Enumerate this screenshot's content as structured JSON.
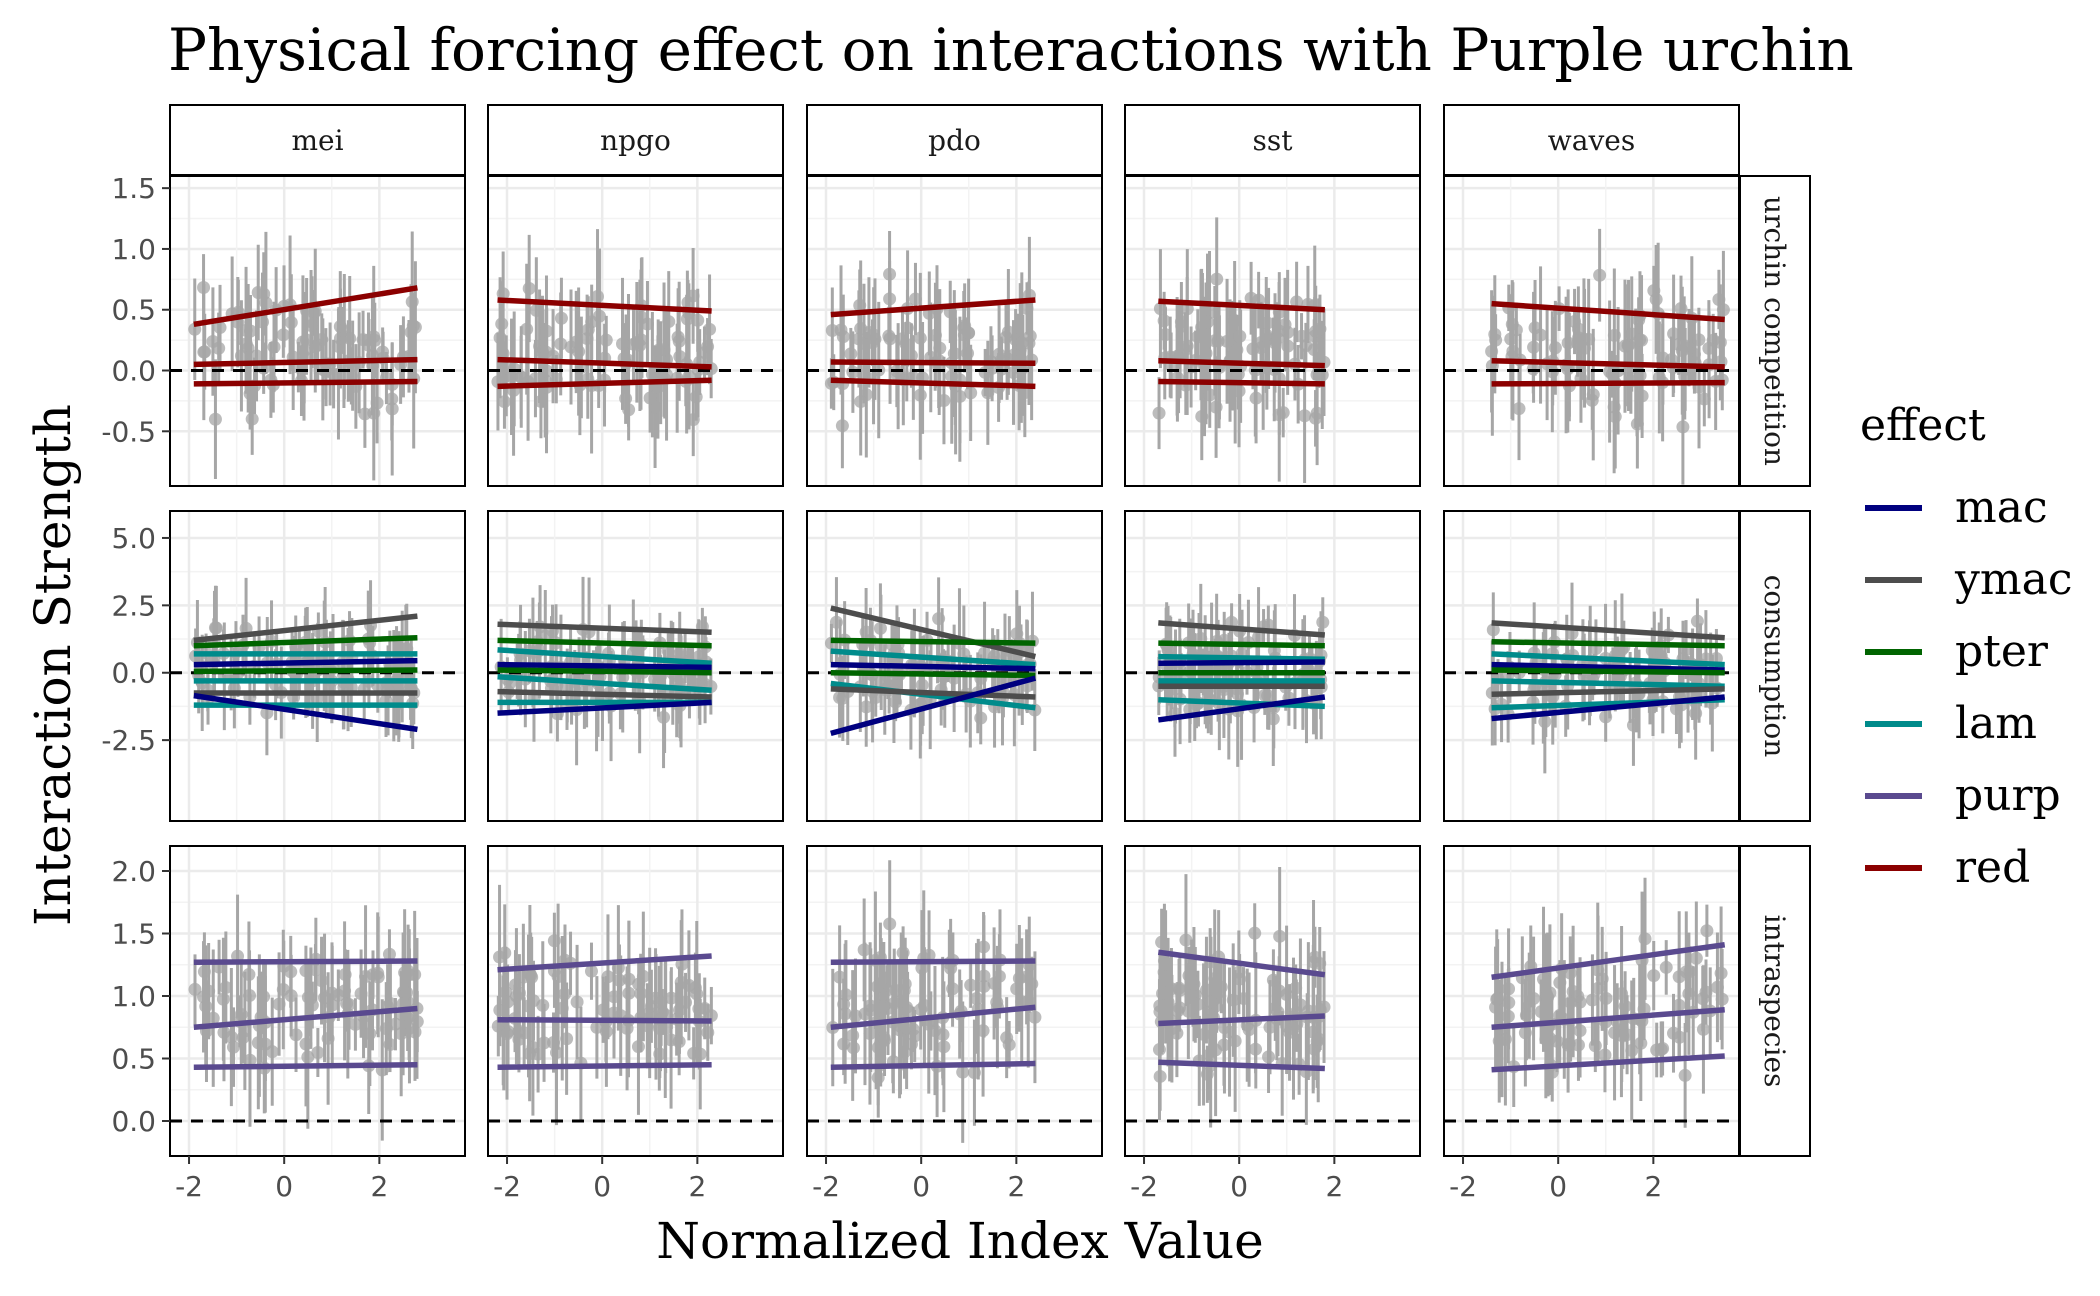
{
  "chart_data": {
    "type": "line",
    "title": "Physical forcing effect on interactions with Purple urchin",
    "xlabel": "Normalized Index Value",
    "ylabel": "Interaction Strength",
    "columns": [
      "mei",
      "npgo",
      "pdo",
      "sst",
      "waves"
    ],
    "rows": [
      "urchin competition",
      "consumption",
      "intraspecies"
    ],
    "xlim": [
      -2.4,
      3.8
    ],
    "x_ticks": [
      -2,
      0,
      2
    ],
    "x_tick_labels": [
      "-2",
      "0",
      "2"
    ],
    "x_range_by_column": {
      "mei": [
        -1.9,
        2.8
      ],
      "npgo": [
        -2.2,
        2.3
      ],
      "pdo": [
        -1.9,
        2.4
      ],
      "sst": [
        -1.7,
        1.8
      ],
      "waves": [
        -1.4,
        3.5
      ]
    },
    "row_axes": {
      "urchin competition": {
        "ylim": [
          -0.95,
          1.6
        ],
        "ticks": [
          -0.5,
          0.0,
          0.5,
          1.0,
          1.5
        ],
        "tick_labels": [
          "-0.5",
          "0.0",
          "0.5",
          "1.0",
          "1.5"
        ]
      },
      "consumption": {
        "ylim": [
          -5.5,
          6.0
        ],
        "ticks": [
          -2.5,
          0.0,
          2.5,
          5.0
        ],
        "tick_labels": [
          "-2.5",
          "0.0",
          "2.5",
          "5.0"
        ]
      },
      "intraspecies": {
        "ylim": [
          -0.28,
          2.2
        ],
        "ticks": [
          0.0,
          0.5,
          1.0,
          1.5,
          2.0
        ],
        "tick_labels": [
          "0.0",
          "0.5",
          "1.0",
          "1.5",
          "2.0"
        ]
      }
    },
    "reference_line_y": 0,
    "legend": {
      "title": "effect",
      "position": "right",
      "items": [
        {
          "name": "mac",
          "color": "#00007f"
        },
        {
          "name": "ymac",
          "color": "#4d4d4d"
        },
        {
          "name": "pter",
          "color": "#006400"
        },
        {
          "name": "lam",
          "color": "#008b8b"
        },
        {
          "name": "purp",
          "color": "#5a4a8f"
        },
        {
          "name": "red",
          "color": "#8b0000"
        }
      ]
    },
    "point_color": "#a6a6a6",
    "grid": true,
    "trend_lines": {
      "urchin competition": {
        "mei": [
          {
            "effect": "red",
            "y": [
              0.38,
              0.68
            ]
          },
          {
            "effect": "red",
            "y": [
              0.05,
              0.09
            ]
          },
          {
            "effect": "red",
            "y": [
              -0.11,
              -0.09
            ]
          }
        ],
        "npgo": [
          {
            "effect": "red",
            "y": [
              0.58,
              0.49
            ]
          },
          {
            "effect": "red",
            "y": [
              0.09,
              0.03
            ]
          },
          {
            "effect": "red",
            "y": [
              -0.13,
              -0.08
            ]
          }
        ],
        "pdo": [
          {
            "effect": "red",
            "y": [
              0.46,
              0.58
            ]
          },
          {
            "effect": "red",
            "y": [
              0.07,
              0.06
            ]
          },
          {
            "effect": "red",
            "y": [
              -0.08,
              -0.13
            ]
          }
        ],
        "sst": [
          {
            "effect": "red",
            "y": [
              0.57,
              0.5
            ]
          },
          {
            "effect": "red",
            "y": [
              0.08,
              0.04
            ]
          },
          {
            "effect": "red",
            "y": [
              -0.09,
              -0.11
            ]
          }
        ],
        "waves": [
          {
            "effect": "red",
            "y": [
              0.55,
              0.42
            ]
          },
          {
            "effect": "red",
            "y": [
              0.08,
              0.03
            ]
          },
          {
            "effect": "red",
            "y": [
              -0.11,
              -0.1
            ]
          }
        ]
      },
      "consumption": {
        "mei": [
          {
            "effect": "ymac",
            "y": [
              1.2,
              2.1
            ]
          },
          {
            "effect": "pter",
            "y": [
              1.0,
              1.3
            ]
          },
          {
            "effect": "lam",
            "y": [
              0.7,
              0.7
            ]
          },
          {
            "effect": "mac",
            "y": [
              0.3,
              0.45
            ]
          },
          {
            "effect": "pter",
            "y": [
              0.05,
              0.1
            ]
          },
          {
            "effect": "lam",
            "y": [
              -0.3,
              -0.3
            ]
          },
          {
            "effect": "ymac",
            "y": [
              -0.75,
              -0.75
            ]
          },
          {
            "effect": "lam",
            "y": [
              -1.2,
              -1.2
            ]
          },
          {
            "effect": "mac",
            "y": [
              -0.85,
              -2.1
            ]
          }
        ],
        "npgo": [
          {
            "effect": "ymac",
            "y": [
              1.8,
              1.5
            ]
          },
          {
            "effect": "pter",
            "y": [
              1.2,
              1.0
            ]
          },
          {
            "effect": "lam",
            "y": [
              0.85,
              0.35
            ]
          },
          {
            "effect": "mac",
            "y": [
              0.3,
              0.2
            ]
          },
          {
            "effect": "pter",
            "y": [
              0.1,
              0.0
            ]
          },
          {
            "effect": "lam",
            "y": [
              -0.15,
              -0.65
            ]
          },
          {
            "effect": "ymac",
            "y": [
              -0.7,
              -0.9
            ]
          },
          {
            "effect": "lam",
            "y": [
              -1.1,
              -1.1
            ]
          },
          {
            "effect": "mac",
            "y": [
              -1.5,
              -1.1
            ]
          }
        ],
        "pdo": [
          {
            "effect": "ymac",
            "y": [
              2.4,
              0.6
            ]
          },
          {
            "effect": "pter",
            "y": [
              1.2,
              1.1
            ]
          },
          {
            "effect": "lam",
            "y": [
              0.8,
              0.3
            ]
          },
          {
            "effect": "mac",
            "y": [
              0.3,
              0.15
            ]
          },
          {
            "effect": "pter",
            "y": [
              0.0,
              -0.1
            ]
          },
          {
            "effect": "lam",
            "y": [
              -0.4,
              -1.3
            ]
          },
          {
            "effect": "ymac",
            "y": [
              -0.6,
              -0.9
            ]
          },
          {
            "effect": "mac",
            "y": [
              -2.25,
              -0.2
            ]
          }
        ],
        "sst": [
          {
            "effect": "ymac",
            "y": [
              1.85,
              1.4
            ]
          },
          {
            "effect": "pter",
            "y": [
              1.1,
              1.0
            ]
          },
          {
            "effect": "lam",
            "y": [
              0.6,
              0.5
            ]
          },
          {
            "effect": "mac",
            "y": [
              0.35,
              0.4
            ]
          },
          {
            "effect": "pter",
            "y": [
              0.0,
              0.0
            ]
          },
          {
            "effect": "lam",
            "y": [
              -0.3,
              -0.3
            ]
          },
          {
            "effect": "ymac",
            "y": [
              -0.5,
              -0.5
            ]
          },
          {
            "effect": "lam",
            "y": [
              -1.0,
              -1.25
            ]
          },
          {
            "effect": "mac",
            "y": [
              -1.75,
              -0.9
            ]
          }
        ],
        "waves": [
          {
            "effect": "ymac",
            "y": [
              1.85,
              1.3
            ]
          },
          {
            "effect": "pter",
            "y": [
              1.15,
              1.0
            ]
          },
          {
            "effect": "lam",
            "y": [
              0.7,
              0.3
            ]
          },
          {
            "effect": "mac",
            "y": [
              0.3,
              0.1
            ]
          },
          {
            "effect": "pter",
            "y": [
              0.1,
              0.0
            ]
          },
          {
            "effect": "lam",
            "y": [
              -0.3,
              -0.5
            ]
          },
          {
            "effect": "ymac",
            "y": [
              -0.8,
              -0.6
            ]
          },
          {
            "effect": "lam",
            "y": [
              -1.3,
              -1.0
            ]
          },
          {
            "effect": "mac",
            "y": [
              -1.7,
              -0.9
            ]
          }
        ]
      },
      "intraspecies": {
        "mei": [
          {
            "effect": "purp",
            "y": [
              1.27,
              1.28
            ]
          },
          {
            "effect": "purp",
            "y": [
              0.75,
              0.9
            ]
          },
          {
            "effect": "purp",
            "y": [
              0.43,
              0.45
            ]
          }
        ],
        "npgo": [
          {
            "effect": "purp",
            "y": [
              1.21,
              1.32
            ]
          },
          {
            "effect": "purp",
            "y": [
              0.81,
              0.8
            ]
          },
          {
            "effect": "purp",
            "y": [
              0.43,
              0.45
            ]
          }
        ],
        "pdo": [
          {
            "effect": "purp",
            "y": [
              1.27,
              1.28
            ]
          },
          {
            "effect": "purp",
            "y": [
              0.75,
              0.91
            ]
          },
          {
            "effect": "purp",
            "y": [
              0.43,
              0.46
            ]
          }
        ],
        "sst": [
          {
            "effect": "purp",
            "y": [
              1.35,
              1.17
            ]
          },
          {
            "effect": "purp",
            "y": [
              0.78,
              0.84
            ]
          },
          {
            "effect": "purp",
            "y": [
              0.47,
              0.42
            ]
          }
        ],
        "waves": [
          {
            "effect": "purp",
            "y": [
              1.15,
              1.41
            ]
          },
          {
            "effect": "purp",
            "y": [
              0.75,
              0.89
            ]
          },
          {
            "effect": "purp",
            "y": [
              0.41,
              0.52
            ]
          }
        ]
      }
    },
    "point_summary": {
      "urchin competition": {
        "center": 0.15,
        "spread": 0.35,
        "err": 0.45
      },
      "consumption": {
        "center": 0.0,
        "spread": 1.1,
        "err": 1.6
      },
      "intraspecies": {
        "center": 0.9,
        "spread": 0.35,
        "err": 0.45
      }
    }
  }
}
